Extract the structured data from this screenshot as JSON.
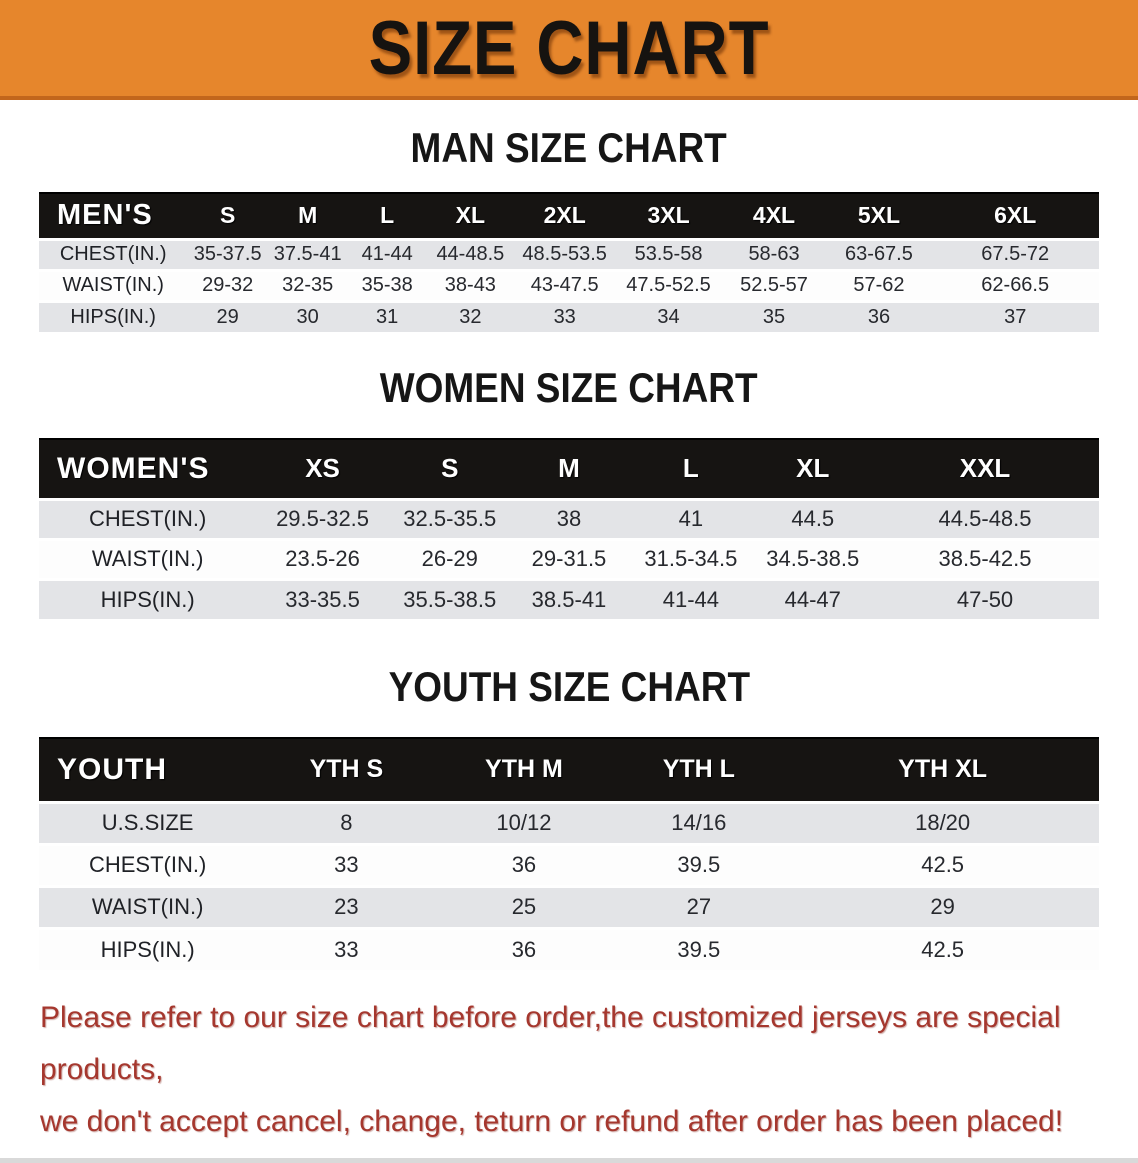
{
  "banner": {
    "title": "SIZE CHART",
    "bg_color": "#E6862C",
    "border_color": "#C2661C"
  },
  "colors": {
    "header_bar": "#161412",
    "zebra_row": "#E3E4E7",
    "plain_row": "#FDFDFD",
    "note_red": "#A5372E"
  },
  "sections": {
    "men": {
      "heading": "MAN SIZE CHART",
      "table": {
        "corner_label": "MEN'S",
        "columns": [
          "S",
          "M",
          "L",
          "XL",
          "2XL",
          "3XL",
          "4XL",
          "5XL",
          "6XL"
        ],
        "col_widths": [
          "14%",
          "7.6%",
          "7.5%",
          "7.5%",
          "8.2%",
          "9.6%",
          "10%",
          "9.9%",
          "9.9%",
          "15.8%"
        ],
        "rows": [
          {
            "label": "CHEST(IN.)",
            "values": [
              "35-37.5",
              "37.5-41",
              "41-44",
              "44-48.5",
              "48.5-53.5",
              "53.5-58",
              "58-63",
              "63-67.5",
              "67.5-72"
            ]
          },
          {
            "label": "WAIST(IN.)",
            "values": [
              "29-32",
              "32-35",
              "35-38",
              "38-43",
              "43-47.5",
              "47.5-52.5",
              "52.5-57",
              "57-62",
              "62-66.5"
            ]
          },
          {
            "label": "HIPS(IN.)",
            "values": [
              "29",
              "30",
              "31",
              "32",
              "33",
              "34",
              "35",
              "36",
              "37"
            ]
          }
        ]
      }
    },
    "women": {
      "heading": "WOMEN SIZE CHART",
      "table": {
        "corner_label": "WOMEN'S",
        "columns": [
          "XS",
          "S",
          "M",
          "L",
          "XL",
          "XXL"
        ],
        "col_widths": [
          "20.5%",
          "12.5%",
          "11.5%",
          "11%",
          "12%",
          "11%",
          "21.5%"
        ],
        "rows": [
          {
            "label": "CHEST(IN.)",
            "values": [
              "29.5-32.5",
              "32.5-35.5",
              "38",
              "41",
              "44.5",
              "44.5-48.5"
            ]
          },
          {
            "label": "WAIST(IN.)",
            "values": [
              "23.5-26",
              "26-29",
              "29-31.5",
              "31.5-34.5",
              "34.5-38.5",
              "38.5-42.5"
            ]
          },
          {
            "label": "HIPS(IN.)",
            "values": [
              "33-35.5",
              "35.5-38.5",
              "38.5-41",
              "41-44",
              "44-47",
              "47-50"
            ]
          }
        ]
      }
    },
    "youth": {
      "heading": "YOUTH SIZE CHART",
      "table": {
        "corner_label": "YOUTH",
        "columns": [
          "YTH S",
          "YTH M",
          "YTH L",
          "YTH XL"
        ],
        "col_widths": [
          "20.5%",
          "17%",
          "16.5%",
          "16.5%",
          "29.5%"
        ],
        "rows": [
          {
            "label": "U.S.SIZE",
            "values": [
              "8",
              "10/12",
              "14/16",
              "18/20"
            ]
          },
          {
            "label": "CHEST(IN.)",
            "values": [
              "33",
              "36",
              "39.5",
              "42.5"
            ]
          },
          {
            "label": "WAIST(IN.)",
            "values": [
              "23",
              "25",
              "27",
              "29"
            ]
          },
          {
            "label": "HIPS(IN.)",
            "values": [
              "33",
              "36",
              "39.5",
              "42.5"
            ]
          }
        ]
      }
    }
  },
  "note": {
    "line1": "Please refer to our size chart before order,the customized jerseys are special products,",
    "line2": "we don't accept cancel, change, teturn or refund after order has been placed!"
  }
}
